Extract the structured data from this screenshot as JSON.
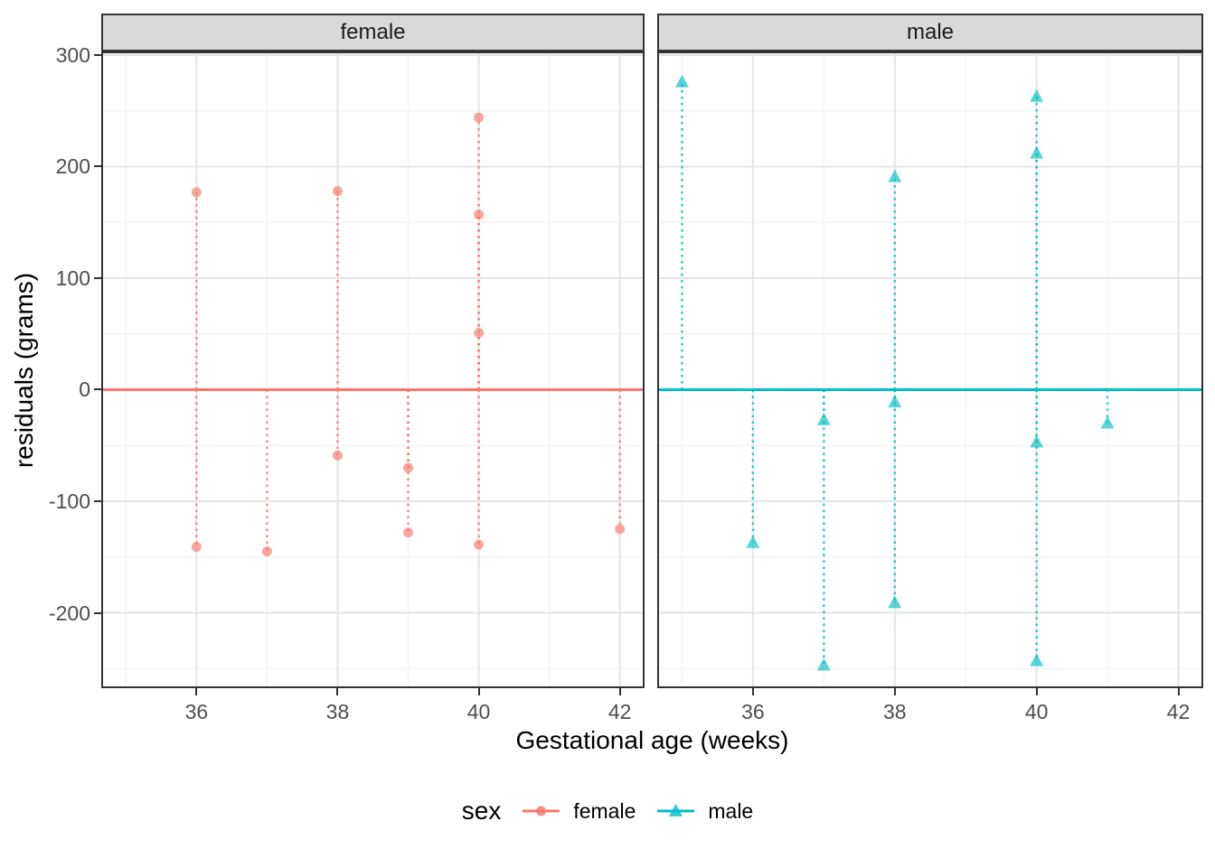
{
  "chart_data": {
    "type": "scatter",
    "xlabel": "Gestational age (weeks)",
    "ylabel": "residuals (grams)",
    "x_ticks": [
      36,
      38,
      40,
      42
    ],
    "x_minor_ticks": [
      35,
      37,
      39,
      41
    ],
    "y_ticks": [
      300,
      200,
      100,
      0,
      -100,
      -200
    ],
    "y_minor_ticks": [
      250,
      150,
      50,
      -50,
      -150,
      -250
    ],
    "xlim": [
      34.65,
      42.35
    ],
    "ylim": [
      -268,
      303
    ],
    "grid": "major and minor gridlines, light gray on white panel",
    "reference_line_y": 0,
    "segments_note": "vertical dotted segment drawn from y=0 to every point, colored by sex",
    "legend_position": "bottom",
    "facets": [
      {
        "label": "female",
        "series": "female",
        "points": [
          [
            36,
            177
          ],
          [
            36,
            -141
          ],
          [
            37,
            -145
          ],
          [
            38,
            178
          ],
          [
            38,
            -59
          ],
          [
            39,
            -70
          ],
          [
            39,
            -128
          ],
          [
            40,
            244
          ],
          [
            40,
            157
          ],
          [
            40,
            51
          ],
          [
            40,
            -139
          ],
          [
            42,
            -125
          ]
        ]
      },
      {
        "label": "male",
        "series": "male",
        "points": [
          [
            35,
            276
          ],
          [
            36,
            -137
          ],
          [
            37,
            -27
          ],
          [
            37,
            -247
          ],
          [
            38,
            191
          ],
          [
            38,
            -11
          ],
          [
            38,
            -191
          ],
          [
            40,
            263
          ],
          [
            40,
            212
          ],
          [
            40,
            -47
          ],
          [
            40,
            -243
          ],
          [
            41,
            -30
          ]
        ]
      }
    ],
    "series": [
      {
        "name": "female",
        "color": "#F8766D",
        "marker": "circle"
      },
      {
        "name": "male",
        "color": "#00BFC4",
        "marker": "triangle"
      }
    ],
    "legend": {
      "title": "sex",
      "items": [
        "female",
        "male"
      ]
    }
  },
  "colors": {
    "strip_bg": "#D9D9D9",
    "panel_border": "#333333",
    "grid_major": "#E5E5E5",
    "grid_minor": "#F2F2F2",
    "tick_label": "#4D4D4D",
    "female": "#F8766D",
    "male": "#00BFC4"
  }
}
